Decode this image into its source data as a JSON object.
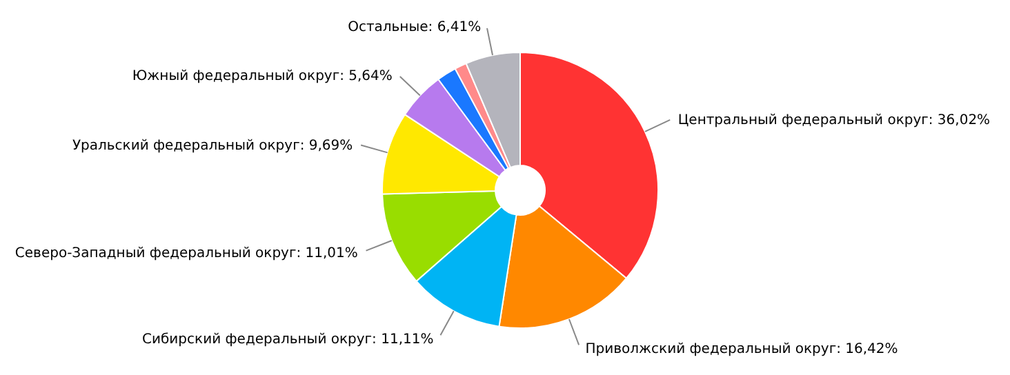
{
  "chart_data": {
    "type": "donut",
    "categories": [
      "Центральный федеральный округ",
      "Приволжский федеральный округ",
      "Сибирский федеральный округ",
      "Северо-Западный федеральный округ",
      "Уральский федеральный округ",
      "Южный федеральный округ",
      null,
      null,
      "Остальные"
    ],
    "values": [
      36.02,
      16.42,
      11.11,
      11.01,
      9.69,
      5.64,
      2.3,
      1.4,
      6.41
    ],
    "value_labels": [
      "36,02%",
      "16,42%",
      "11,11%",
      "11,01%",
      "9,69%",
      "5,64%",
      null,
      null,
      "6,41%"
    ],
    "colors": [
      "#ff3333",
      "#ff8800",
      "#00b4f4",
      "#99dd00",
      "#ffe800",
      "#b77aee",
      "#1a78ff",
      "#ff8a8a",
      "#b4b4bc"
    ],
    "legend": false
  }
}
